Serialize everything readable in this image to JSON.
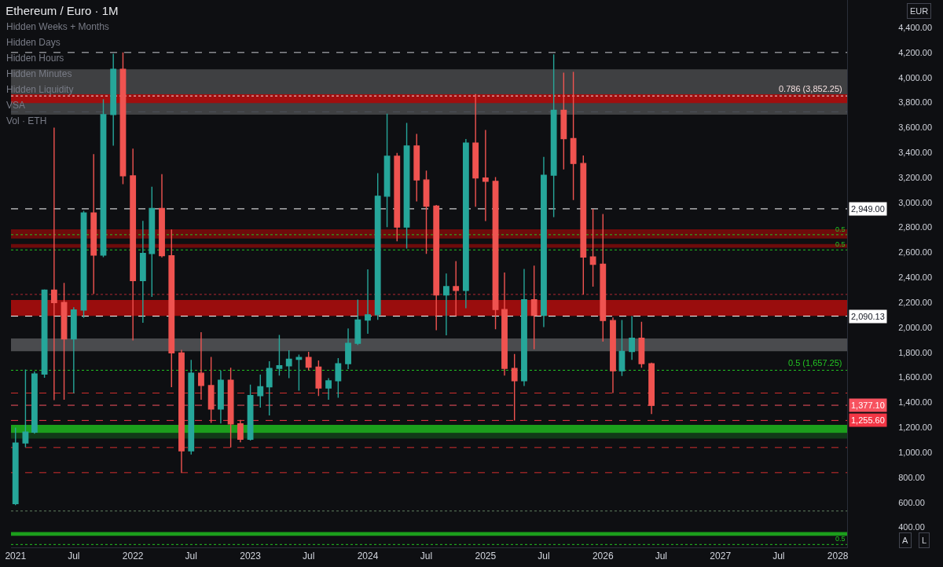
{
  "chart_data": {
    "type": "candlestick",
    "title": "Ethereum / Euro · 1M",
    "annotations": [
      "Hidden Weeks + Months",
      "Hidden Days",
      "Hidden Hours",
      "Hidden Minutes",
      "Hidden Liquidity",
      "VSA",
      "Vol · ETH",
      "EUR",
      "A",
      "L",
      {
        "text": "0.5",
        "x": "2028-01-10",
        "y": 2742
      },
      {
        "text": "0.5",
        "x": "2028-01-10",
        "y": 2620
      },
      {
        "text": "0.5",
        "x": "2028-01-10",
        "y": 263
      }
    ],
    "x": [
      "2021-01",
      "2021-02",
      "2021-03",
      "2021-04",
      "2021-05",
      "2021-06",
      "2021-07",
      "2021-08",
      "2021-09",
      "2021-10",
      "2021-11",
      "2021-12",
      "2022-01",
      "2022-02",
      "2022-03",
      "2022-04",
      "2022-05",
      "2022-06",
      "2022-07",
      "2022-08",
      "2022-09",
      "2022-10",
      "2022-11",
      "2022-12",
      "2023-01",
      "2023-02",
      "2023-03",
      "2023-04",
      "2023-05",
      "2023-06",
      "2023-07",
      "2023-08",
      "2023-09",
      "2023-10",
      "2023-11",
      "2023-12",
      "2024-01",
      "2024-02",
      "2024-03",
      "2024-04",
      "2024-05",
      "2024-06",
      "2024-07",
      "2024-08",
      "2024-09",
      "2024-10",
      "2024-11",
      "2024-12",
      "2025-01",
      "2025-02",
      "2025-03",
      "2025-04",
      "2025-05",
      "2025-06",
      "2025-07",
      "2025-08",
      "2025-09",
      "2025-10",
      "2025-11",
      "2025-12",
      "2026-01",
      "2026-02",
      "2026-03",
      "2026-04",
      "2026-05",
      "2026-06"
    ],
    "ohlc": [
      [
        590,
        1199,
        577,
        1075
      ],
      [
        1075,
        1664,
        1042,
        1162
      ],
      [
        1162,
        1647,
        1150,
        1627
      ],
      [
        1627,
        2305,
        1597,
        2298
      ],
      [
        2298,
        3599,
        1418,
        2199
      ],
      [
        2199,
        2356,
        1422,
        1908
      ],
      [
        1908,
        2161,
        1473,
        2139
      ],
      [
        2139,
        2932,
        2077,
        2915
      ],
      [
        2915,
        3387,
        2268,
        2579
      ],
      [
        2579,
        3827,
        2562,
        3703
      ],
      [
        3703,
        4190,
        3455,
        4066
      ],
      [
        4066,
        4200,
        3146,
        3213
      ],
      [
        3213,
        3430,
        1896,
        2375
      ],
      [
        2375,
        2853,
        2037,
        2592
      ],
      [
        2592,
        3126,
        2244,
        2952
      ],
      [
        2952,
        3226,
        2560,
        2574
      ],
      [
        2574,
        2783,
        1522,
        1796
      ],
      [
        1796,
        1821,
        838,
        1013
      ],
      [
        1013,
        1741,
        983,
        1634
      ],
      [
        1634,
        1962,
        1422,
        1535
      ],
      [
        1535,
        1764,
        1236,
        1348
      ],
      [
        1348,
        1654,
        1231,
        1577
      ],
      [
        1577,
        1678,
        1039,
        1228
      ],
      [
        1228,
        1259,
        1081,
        1106
      ],
      [
        1106,
        1542,
        1095,
        1454
      ],
      [
        1454,
        1622,
        1358,
        1525
      ],
      [
        1525,
        1730,
        1295,
        1672
      ],
      [
        1672,
        1940,
        1615,
        1693
      ],
      [
        1693,
        1818,
        1594,
        1745
      ],
      [
        1745,
        1782,
        1493,
        1760
      ],
      [
        1760,
        1804,
        1657,
        1682
      ],
      [
        1682,
        1735,
        1452,
        1515
      ],
      [
        1515,
        1594,
        1421,
        1573
      ],
      [
        1573,
        1755,
        1437,
        1710
      ],
      [
        1710,
        1992,
        1667,
        1873
      ],
      [
        1873,
        2222,
        1860,
        2059
      ],
      [
        2059,
        2464,
        1950,
        2101
      ],
      [
        2101,
        3234,
        2061,
        3050
      ],
      [
        3050,
        3710,
        2803,
        3369
      ],
      [
        3369,
        3396,
        2690,
        2803
      ],
      [
        2803,
        3636,
        2631,
        3452
      ],
      [
        3452,
        3548,
        3008,
        3180
      ],
      [
        3180,
        3255,
        2589,
        2970
      ],
      [
        2970,
        2980,
        1977,
        2260
      ],
      [
        2260,
        2432,
        1936,
        2327
      ],
      [
        2327,
        2530,
        2090,
        2296
      ],
      [
        2296,
        3507,
        2153,
        3475
      ],
      [
        3475,
        3867,
        2966,
        3196
      ],
      [
        3196,
        3580,
        2851,
        3169
      ],
      [
        3169,
        3203,
        1986,
        2143
      ],
      [
        2143,
        2439,
        1615,
        1672
      ],
      [
        1672,
        1787,
        1255.6,
        1573
      ],
      [
        1573,
        2467,
        1531,
        2222
      ],
      [
        2222,
        2495,
        1825,
        2097
      ],
      [
        2097,
        3364,
        2002,
        3218
      ],
      [
        3218,
        4185,
        2882,
        3737
      ],
      [
        3737,
        4038,
        3264,
        3511
      ],
      [
        3511,
        4045,
        3019,
        3312
      ],
      [
        3312,
        3375,
        2264,
        2564
      ],
      [
        2564,
        2949,
        2327,
        2505
      ],
      [
        2505,
        2907,
        1887,
        2055
      ],
      [
        2055,
        2080,
        1475,
        1653
      ],
      [
        1653,
        2059,
        1611,
        1808
      ],
      [
        1808,
        2090.13,
        1741,
        1913
      ],
      [
        1913,
        2045,
        1678,
        1710
      ],
      [
        1710,
        1718,
        1307,
        1377.1
      ]
    ],
    "colors": [
      "#26a69a",
      "#26a69a",
      "#26a69a",
      "#26a69a",
      "#ef5350",
      "#ef5350",
      "#26a69a",
      "#26a69a",
      "#ef5350",
      "#26a69a",
      "#26a69a",
      "#ef5350",
      "#ef5350",
      "#26a69a",
      "#26a69a",
      "#ef5350",
      "#ef5350",
      "#ef5350",
      "#26a69a",
      "#ef5350",
      "#ef5350",
      "#26a69a",
      "#ef5350",
      "#ef5350",
      "#26a69a",
      "#26a69a",
      "#26a69a",
      "#26a69a",
      "#26a69a",
      "#26a69a",
      "#ef5350",
      "#ef5350",
      "#26a69a",
      "#26a69a",
      "#26a69a",
      "#26a69a",
      "#26a69a",
      "#26a69a",
      "#26a69a",
      "#ef5350",
      "#26a69a",
      "#ef5350",
      "#ef5350",
      "#ef5350",
      "#26a69a",
      "#ef5350",
      "#26a69a",
      "#ef5350",
      "#ef5350",
      "#ef5350",
      "#ef5350",
      "#ef5350",
      "#26a69a",
      "#ef5350",
      "#26a69a",
      "#26a69a",
      "#ef5350",
      "#ef5350",
      "#ef5350",
      "#ef5350",
      "#ef5350",
      "#ef5350",
      "#26a69a",
      "#26a69a",
      "#ef5350",
      "#ef5350"
    ],
    "xlim": [
      "2020-12-18",
      "2028-01-30"
    ],
    "xticks": [
      {
        "value": "2021-01",
        "label": "2021"
      },
      {
        "value": "2021-07",
        "label": "Jul"
      },
      {
        "value": "2022-01",
        "label": "2022"
      },
      {
        "value": "2022-07",
        "label": "Jul"
      },
      {
        "value": "2023-01",
        "label": "2023"
      },
      {
        "value": "2023-07",
        "label": "Jul"
      },
      {
        "value": "2024-01",
        "label": "2024"
      },
      {
        "value": "2024-07",
        "label": "Jul"
      },
      {
        "value": "2025-01",
        "label": "2025"
      },
      {
        "value": "2025-07",
        "label": "Jul"
      },
      {
        "value": "2026-01",
        "label": "2026"
      },
      {
        "value": "2026-07",
        "label": "Jul"
      },
      {
        "value": "2027-01",
        "label": "2027"
      },
      {
        "value": "2027-07",
        "label": "Jul"
      },
      {
        "value": "2028-01",
        "label": "2028"
      }
    ],
    "ylim": [
      240,
      4620
    ],
    "yticks": [
      {
        "value": 400,
        "label": "400.00"
      },
      {
        "value": 600,
        "label": "600.00"
      },
      {
        "value": 800,
        "label": "800.00"
      },
      {
        "value": 1000,
        "label": "1,000.00"
      },
      {
        "value": 1200,
        "label": "1,200.00"
      },
      {
        "value": 1400,
        "label": "1,400.00"
      },
      {
        "value": 1600,
        "label": "1,600.00"
      },
      {
        "value": 1800,
        "label": "1,800.00"
      },
      {
        "value": 2000,
        "label": "2,000.00"
      },
      {
        "value": 2200,
        "label": "2,200.00"
      },
      {
        "value": 2400,
        "label": "2,400.00"
      },
      {
        "value": 2600,
        "label": "2,600.00"
      },
      {
        "value": 2800,
        "label": "2,800.00"
      },
      {
        "value": 3000,
        "label": "3,000.00"
      },
      {
        "value": 3200,
        "label": "3,200.00"
      },
      {
        "value": 3400,
        "label": "3,400.00"
      },
      {
        "value": 3600,
        "label": "3,600.00"
      },
      {
        "value": 3800,
        "label": "3,800.00"
      },
      {
        "value": 4000,
        "label": "4,000.00"
      },
      {
        "value": 4200,
        "label": "4,200.00"
      },
      {
        "value": 4400,
        "label": "4,400.00"
      }
    ],
    "bands": [
      {
        "axis": "y",
        "from": 3703,
        "to": 4066,
        "color": "#3f4042"
      },
      {
        "axis": "y",
        "from": 3796,
        "to": 3866,
        "color": "#a10f0f"
      },
      {
        "axis": "y",
        "from": 2711,
        "to": 2785,
        "color": "#6e0b0b"
      },
      {
        "axis": "y",
        "from": 2637,
        "to": 2667,
        "color": "#6e0b0b"
      },
      {
        "axis": "y",
        "from": 2093,
        "to": 2219,
        "color": "#9a0d0d"
      },
      {
        "axis": "y",
        "from": 1810,
        "to": 1911,
        "color": "#4a4b4e"
      },
      {
        "axis": "y",
        "from": 1155,
        "to": 1220,
        "color": "#1c9e1c"
      },
      {
        "axis": "y",
        "from": 1110,
        "to": 1155,
        "color": "#113a18"
      },
      {
        "axis": "y",
        "from": 332,
        "to": 362,
        "color": "#1c9e1c"
      }
    ],
    "ref_lines": [
      {
        "axis": "y",
        "value": 4200,
        "color": "#c8cad0",
        "line_style": "dashed"
      },
      {
        "axis": "y",
        "value": 3852.25,
        "label": "0.786 (3,852.25)",
        "color": "#f2dede",
        "line_style": "dotted"
      },
      {
        "axis": "y",
        "value": 3725,
        "color": "#4f525b",
        "line_style": "dashed"
      },
      {
        "axis": "y",
        "value": 2949,
        "label": "2,949.00",
        "color": "#ffffff",
        "line_style": "dashed"
      },
      {
        "axis": "y",
        "value": 2742,
        "color": "#22c322",
        "line_style": "dotted"
      },
      {
        "axis": "y",
        "value": 2620,
        "color": "#22c322",
        "line_style": "dotted"
      },
      {
        "axis": "y",
        "value": 2264,
        "color": "#b22833",
        "line_style": "dotted"
      },
      {
        "axis": "y",
        "value": 2090.13,
        "label": "2,090.13",
        "color": "#ffffff",
        "line_style": "dashed"
      },
      {
        "axis": "y",
        "value": 1657.25,
        "label": "0.5 (1,657.25)",
        "color": "#22c322",
        "line_style": "dotted"
      },
      {
        "axis": "y",
        "value": 1475,
        "color": "#d32f2f",
        "line_style": "dashed"
      },
      {
        "axis": "y",
        "value": 1377.1,
        "label": "1,377.10",
        "color": "#f7525f",
        "line_style": "dashed"
      },
      {
        "axis": "y",
        "value": 1255.6,
        "label": "1,255.60",
        "color": "#f23645",
        "line_style": "dashed"
      },
      {
        "axis": "y",
        "value": 1039,
        "color": "#d32f2f",
        "line_style": "dashed"
      },
      {
        "axis": "y",
        "value": 838,
        "color": "#d32f2f",
        "line_style": "dashed"
      },
      {
        "axis": "y",
        "value": 531,
        "color": "#5f7f5f",
        "line_style": "dotted"
      },
      {
        "axis": "y",
        "value": 263,
        "color": "#22c322",
        "line_style": "dotted"
      }
    ]
  }
}
